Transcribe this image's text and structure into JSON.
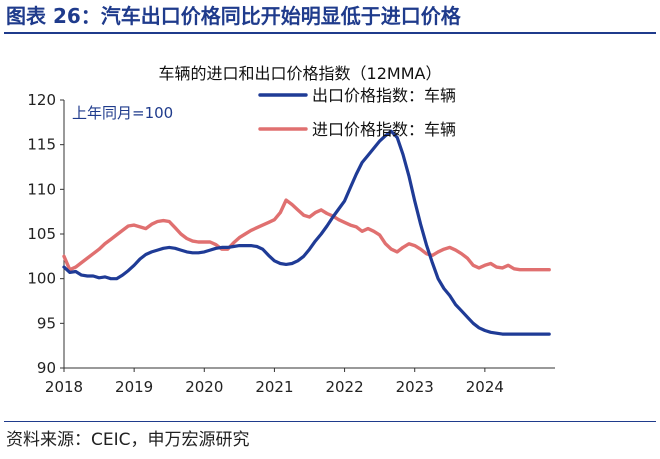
{
  "figure": {
    "title": "图表 26：汽车出口价格同比开始明显低于进口价格",
    "source": "资料来源：CEIC，申万宏源研究"
  },
  "chart_data": {
    "type": "line",
    "title": "车辆的进口和出口价格指数（12MMA）",
    "annotation": "上年同月=100",
    "xlabel": "",
    "ylabel": "",
    "xlim": [
      2018,
      2025
    ],
    "ylim": [
      90,
      120
    ],
    "x_ticks": [
      2018,
      2019,
      2020,
      2021,
      2022,
      2023,
      2024
    ],
    "y_ticks": [
      90,
      95,
      100,
      105,
      110,
      115,
      120
    ],
    "grid": false,
    "legend_position": "top-right",
    "x": [
      "2018-01",
      "2018-02",
      "2018-03",
      "2018-04",
      "2018-05",
      "2018-06",
      "2018-07",
      "2018-08",
      "2018-09",
      "2018-10",
      "2018-11",
      "2018-12",
      "2019-01",
      "2019-02",
      "2019-03",
      "2019-04",
      "2019-05",
      "2019-06",
      "2019-07",
      "2019-08",
      "2019-09",
      "2019-10",
      "2019-11",
      "2019-12",
      "2020-01",
      "2020-02",
      "2020-03",
      "2020-04",
      "2020-05",
      "2020-06",
      "2020-07",
      "2020-08",
      "2020-09",
      "2020-10",
      "2020-11",
      "2020-12",
      "2021-01",
      "2021-02",
      "2021-03",
      "2021-04",
      "2021-05",
      "2021-06",
      "2021-07",
      "2021-08",
      "2021-09",
      "2021-10",
      "2021-11",
      "2021-12",
      "2022-01",
      "2022-02",
      "2022-03",
      "2022-04",
      "2022-05",
      "2022-06",
      "2022-07",
      "2022-08",
      "2022-09",
      "2022-10",
      "2022-11",
      "2022-12",
      "2023-01",
      "2023-02",
      "2023-03",
      "2023-04",
      "2023-05",
      "2023-06",
      "2023-07",
      "2023-08",
      "2023-09",
      "2023-10",
      "2023-11",
      "2023-12",
      "2024-01",
      "2024-02",
      "2024-03",
      "2024-04",
      "2024-05",
      "2024-06",
      "2024-07",
      "2024-08",
      "2024-09",
      "2024-10",
      "2024-11",
      "2024-12"
    ],
    "series": [
      {
        "name": "出口价格指数：车辆",
        "color": "#1f3b96",
        "values": [
          101.3,
          100.7,
          100.8,
          100.4,
          100.3,
          100.3,
          100.1,
          100.2,
          100.0,
          100.0,
          100.4,
          100.9,
          101.5,
          102.2,
          102.7,
          103.0,
          103.2,
          103.4,
          103.5,
          103.4,
          103.2,
          103.0,
          102.9,
          102.9,
          103.0,
          103.2,
          103.4,
          103.5,
          103.5,
          103.6,
          103.7,
          103.7,
          103.7,
          103.6,
          103.3,
          102.6,
          102.0,
          101.7,
          101.6,
          101.7,
          102.0,
          102.5,
          103.3,
          104.2,
          105.0,
          105.9,
          106.9,
          107.8,
          108.7,
          110.2,
          111.7,
          113.0,
          113.8,
          114.6,
          115.4,
          116.0,
          116.5,
          115.8,
          113.9,
          111.5,
          108.7,
          106.1,
          103.8,
          101.8,
          100.0,
          98.9,
          98.1,
          97.1,
          96.4,
          95.7,
          95.0,
          94.5,
          94.2,
          94.0,
          93.9,
          93.8,
          93.8,
          93.8,
          93.8,
          93.8,
          93.8,
          93.8,
          93.8,
          93.8
        ]
      },
      {
        "name": "进口价格指数：车辆",
        "color": "#e07070",
        "values": [
          102.5,
          101.0,
          101.3,
          101.8,
          102.3,
          102.8,
          103.3,
          103.9,
          104.4,
          104.9,
          105.4,
          105.9,
          106.0,
          105.8,
          105.6,
          106.1,
          106.4,
          106.5,
          106.4,
          105.7,
          105.0,
          104.5,
          104.2,
          104.1,
          104.1,
          104.1,
          103.8,
          103.3,
          103.3,
          104.0,
          104.6,
          105.0,
          105.4,
          105.7,
          106.0,
          106.3,
          106.6,
          107.4,
          108.8,
          108.3,
          107.7,
          107.1,
          106.9,
          107.4,
          107.7,
          107.3,
          107.0,
          106.6,
          106.3,
          106.0,
          105.8,
          105.3,
          105.6,
          105.3,
          104.9,
          103.9,
          103.3,
          103.0,
          103.5,
          103.9,
          103.7,
          103.3,
          102.8,
          102.6,
          103.0,
          103.3,
          103.5,
          103.2,
          102.8,
          102.3,
          101.5,
          101.2,
          101.5,
          101.7,
          101.3,
          101.2,
          101.5,
          101.1,
          101.0,
          101.0,
          101.0,
          101.0,
          101.0,
          101.0
        ]
      }
    ]
  }
}
